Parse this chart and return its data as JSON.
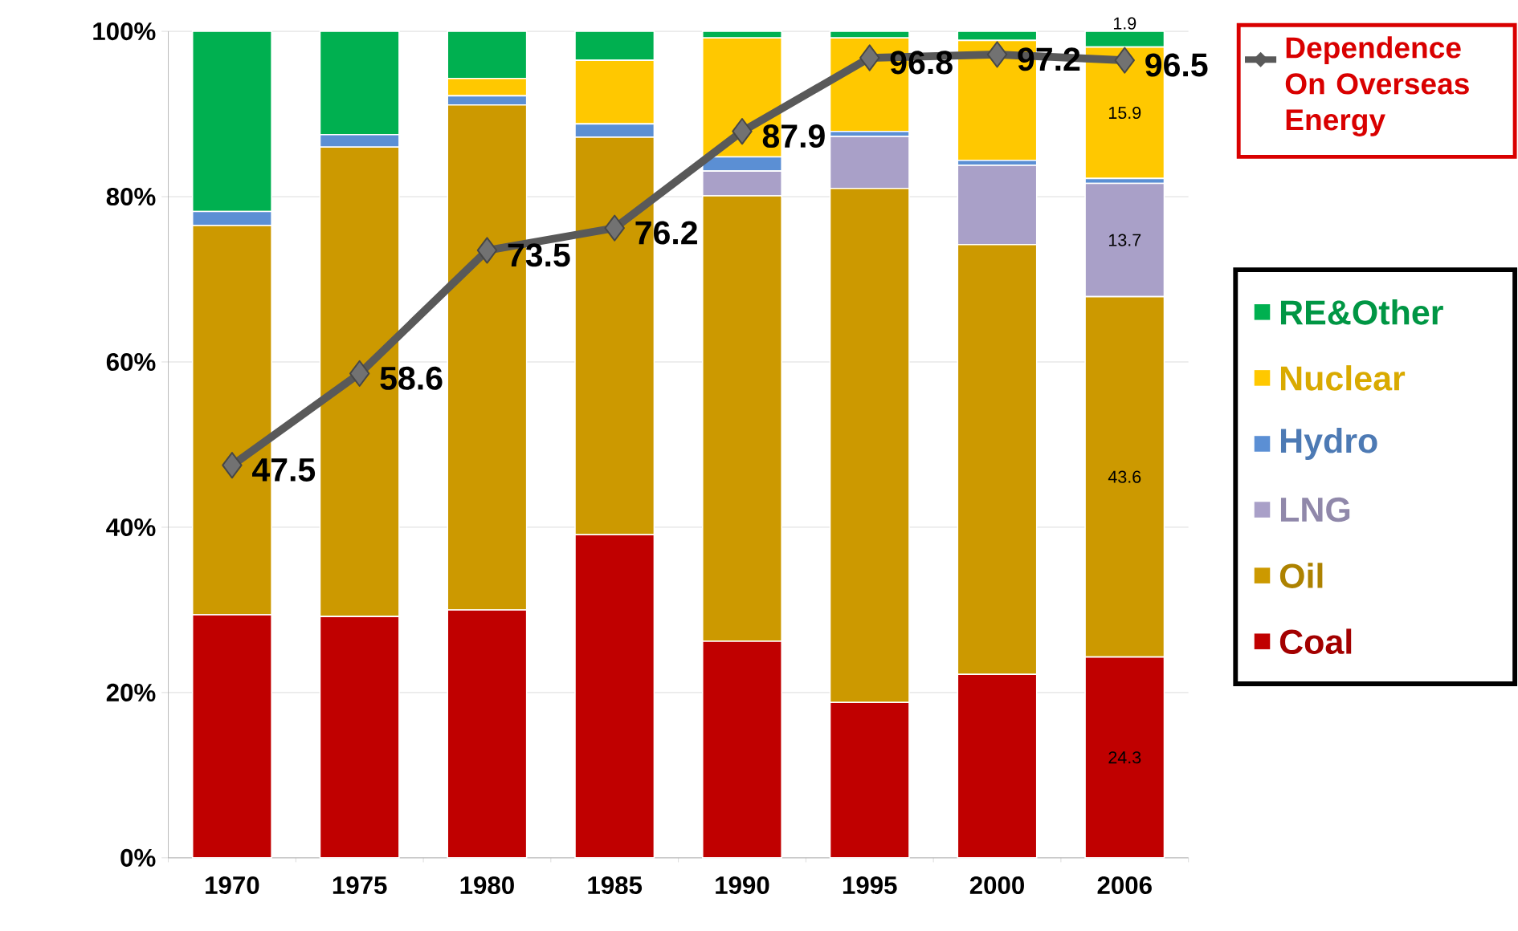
{
  "chart_data": {
    "type": "bar",
    "stacked": true,
    "categories": [
      "1970",
      "1975",
      "1980",
      "1985",
      "1990",
      "1995",
      "2000",
      "2006"
    ],
    "series": [
      {
        "name": "Coal",
        "color": "#c00000",
        "values": [
          29.4,
          29.2,
          30.0,
          39.1,
          26.2,
          18.8,
          22.2,
          24.3
        ],
        "value_labels": [
          null,
          null,
          null,
          null,
          null,
          null,
          null,
          "24.3"
        ]
      },
      {
        "name": "Oil",
        "color": "#cc9900",
        "values": [
          47.1,
          56.8,
          61.1,
          48.1,
          53.9,
          62.2,
          52.0,
          43.6
        ],
        "value_labels": [
          null,
          null,
          null,
          null,
          null,
          null,
          null,
          "43.6"
        ]
      },
      {
        "name": "LNG",
        "color": "#a9a0c8",
        "values": [
          0,
          0,
          0,
          0,
          3.0,
          6.3,
          9.6,
          13.7
        ],
        "value_labels": [
          null,
          null,
          null,
          null,
          null,
          null,
          null,
          "13.7"
        ]
      },
      {
        "name": "Hydro",
        "color": "#5b8fd4",
        "values": [
          1.7,
          1.5,
          1.1,
          1.6,
          1.7,
          0.6,
          0.6,
          0.6
        ]
      },
      {
        "name": "Nuclear",
        "color": "#ffc800",
        "values": [
          0,
          0,
          2.1,
          7.7,
          14.4,
          11.3,
          14.5,
          15.9
        ],
        "value_labels": [
          null,
          null,
          null,
          null,
          null,
          null,
          null,
          "15.9"
        ]
      },
      {
        "name": "RE&Other",
        "color": "#00b050",
        "values": [
          21.8,
          12.5,
          5.7,
          3.5,
          0.8,
          0.8,
          1.1,
          1.9
        ],
        "value_labels": [
          null,
          null,
          null,
          null,
          null,
          null,
          null,
          "1.9"
        ]
      },
      {
        "name": "Dependence On Overseas Energy",
        "type": "line",
        "color": "#595959",
        "values": [
          47.5,
          58.6,
          73.5,
          76.2,
          87.9,
          96.8,
          97.2,
          96.5
        ],
        "value_labels": [
          "47.5",
          "58.6",
          "73.5",
          "76.2",
          "87.9",
          "96.8",
          "97.2",
          "96.5"
        ]
      }
    ],
    "ylim": [
      0,
      100
    ],
    "yticks": [
      {
        "value": 0,
        "label": "0%"
      },
      {
        "value": 20,
        "label": "20%"
      },
      {
        "value": 40,
        "label": "40%"
      },
      {
        "value": 60,
        "label": "60%"
      },
      {
        "value": 80,
        "label": "80%"
      },
      {
        "value": 100,
        "label": "100%"
      }
    ],
    "grid": "y",
    "legend": "right",
    "marker": "diamond",
    "line_style": "solid"
  }
}
